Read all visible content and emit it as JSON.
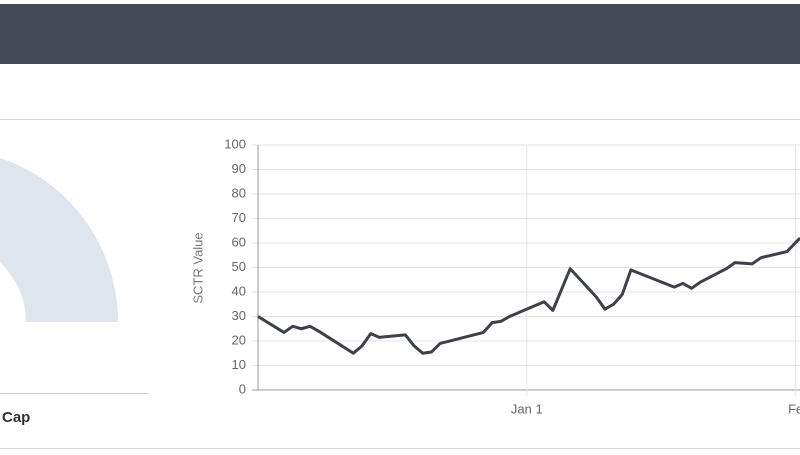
{
  "gauge": {
    "label": "Cap"
  },
  "chart_data": {
    "type": "line",
    "y_label": "SCTR Value",
    "x": [
      0,
      3,
      4,
      5,
      6,
      7,
      11,
      12,
      13,
      14,
      17,
      18,
      19,
      20,
      21,
      26,
      27,
      28,
      29,
      33,
      34,
      36,
      39,
      40,
      41,
      42,
      43,
      48,
      49,
      50,
      51,
      54,
      55,
      57,
      58,
      61,
      62.5
    ],
    "series": [
      {
        "name": "SCTR",
        "color": "#3d4149",
        "values": [
          30,
          23.5,
          26,
          25,
          26,
          24,
          15,
          18,
          23,
          21.5,
          22.5,
          18,
          15,
          15.5,
          19,
          23.5,
          27.5,
          28,
          30,
          36,
          32.5,
          49.5,
          38,
          33,
          35,
          39,
          49,
          42,
          43.5,
          41.5,
          44,
          49.5,
          52,
          51.5,
          54,
          56.5,
          62
        ]
      }
    ],
    "xlim": [
      0,
      62.5
    ],
    "xticks": [
      {
        "value": 31,
        "label": "Jan 1"
      },
      {
        "value": 62,
        "label": "Fe"
      }
    ],
    "ylim": [
      0,
      100
    ],
    "yticks": [
      0,
      10,
      20,
      30,
      40,
      50,
      60,
      70,
      80,
      90,
      100
    ],
    "grid": true
  }
}
